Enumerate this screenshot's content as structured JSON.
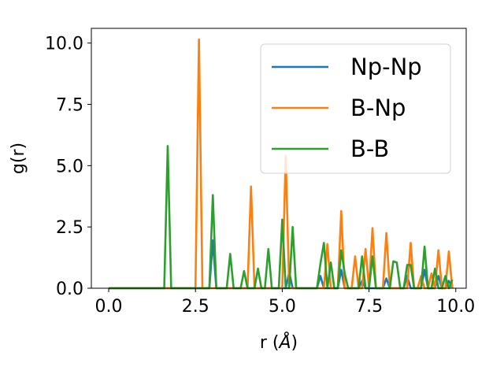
{
  "chart_data": {
    "type": "line",
    "title": "",
    "xlabel": "r (",
    "xlabel_unit": "Å",
    "xlabel_close": ")",
    "ylabel": "g(r)",
    "xlim": [
      -0.5,
      10.3
    ],
    "ylim": [
      0,
      10.6
    ],
    "xticks": [
      0.0,
      2.5,
      5.0,
      7.5,
      10.0
    ],
    "xtick_labels": [
      "0.0",
      "2.5",
      "5.0",
      "7.5",
      "10.0"
    ],
    "yticks": [
      0.0,
      2.5,
      5.0,
      7.5,
      10.0
    ],
    "ytick_labels": [
      "0.0",
      "2.5",
      "5.0",
      "7.5",
      "10.0"
    ],
    "grid": false,
    "legend_position": "upper right",
    "series": [
      {
        "name": "Np-Np",
        "color": "#1f77b4",
        "x": [
          0.0,
          2.9,
          3.0,
          3.1,
          5.1,
          5.2,
          5.3,
          6.0,
          6.1,
          6.2,
          6.6,
          6.7,
          6.8,
          7.2,
          7.3,
          7.4,
          7.9,
          8.0,
          8.1,
          8.5,
          8.6,
          8.7,
          9.0,
          9.1,
          9.2,
          9.4,
          9.5,
          9.6,
          9.7,
          9.8,
          9.9
        ],
        "y": [
          0.0,
          0.0,
          1.95,
          0.0,
          0.0,
          0.65,
          0.0,
          0.0,
          0.5,
          0.0,
          0.0,
          0.75,
          0.0,
          0.0,
          0.3,
          0.0,
          0.0,
          0.4,
          0.0,
          0.0,
          0.5,
          0.0,
          0.0,
          0.75,
          0.0,
          0.0,
          0.5,
          0.0,
          0.0,
          0.3,
          0.0
        ]
      },
      {
        "name": "B-Np",
        "color": "#ff7f0e",
        "x": [
          0.0,
          2.5,
          2.6,
          2.7,
          4.0,
          4.1,
          4.2,
          5.0,
          5.1,
          5.2,
          6.2,
          6.3,
          6.4,
          6.6,
          6.7,
          6.8,
          7.0,
          7.1,
          7.2,
          7.3,
          7.4,
          7.5,
          7.6,
          7.7,
          7.9,
          8.0,
          8.1,
          8.6,
          8.7,
          8.8,
          8.9,
          9.0,
          9.1,
          9.2,
          9.3,
          9.4,
          9.5,
          9.6,
          9.7,
          9.8,
          9.9
        ],
        "y": [
          0.0,
          0.0,
          10.15,
          0.0,
          0.0,
          4.15,
          0.0,
          0.0,
          5.4,
          0.0,
          0.0,
          1.8,
          0.0,
          0.0,
          3.15,
          0.0,
          0.0,
          1.3,
          0.0,
          0.0,
          1.6,
          0.0,
          2.45,
          0.0,
          0.0,
          2.25,
          0.0,
          0.0,
          1.85,
          0.0,
          0.0,
          0.5,
          0.0,
          0.0,
          0.6,
          0.0,
          1.55,
          0.0,
          0.0,
          1.5,
          0.0
        ]
      },
      {
        "name": "B-B",
        "color": "#2ca02c",
        "x": [
          0.0,
          1.6,
          1.7,
          1.8,
          2.9,
          3.0,
          3.1,
          3.4,
          3.5,
          3.6,
          3.8,
          3.9,
          4.0,
          4.2,
          4.3,
          4.4,
          4.5,
          4.6,
          4.7,
          4.8,
          4.9,
          5.0,
          5.1,
          5.2,
          5.3,
          5.4,
          5.9,
          6.0,
          6.1,
          6.2,
          6.3,
          6.4,
          6.5,
          6.6,
          6.7,
          6.8,
          6.9,
          7.0,
          7.1,
          7.2,
          7.3,
          7.4,
          7.5,
          7.6,
          7.7,
          7.8,
          7.9,
          8.0,
          8.1,
          8.2,
          8.3,
          8.4,
          8.5,
          8.6,
          8.7,
          8.8,
          8.9,
          9.0,
          9.1,
          9.2,
          9.3,
          9.4,
          9.5,
          9.6,
          9.7,
          9.8,
          9.9
        ],
        "y": [
          0.0,
          0.0,
          5.8,
          0.0,
          0.0,
          3.8,
          0.0,
          0.0,
          1.4,
          0.0,
          0.0,
          0.7,
          0.0,
          0.0,
          0.8,
          0.0,
          0.0,
          1.6,
          0.0,
          0.0,
          0.0,
          2.8,
          0.0,
          0.0,
          2.5,
          0.0,
          0.0,
          0.0,
          1.0,
          1.85,
          0.0,
          1.05,
          0.0,
          0.0,
          1.55,
          0.6,
          0.0,
          0.0,
          0.0,
          0.0,
          1.3,
          0.0,
          0.0,
          1.3,
          0.0,
          0.0,
          0.0,
          0.0,
          0.0,
          1.1,
          1.05,
          0.0,
          0.0,
          0.95,
          0.95,
          0.0,
          0.0,
          0.0,
          1.7,
          0.0,
          0.0,
          0.8,
          0.0,
          0.0,
          0.5,
          0.0,
          0.35
        ]
      }
    ]
  }
}
